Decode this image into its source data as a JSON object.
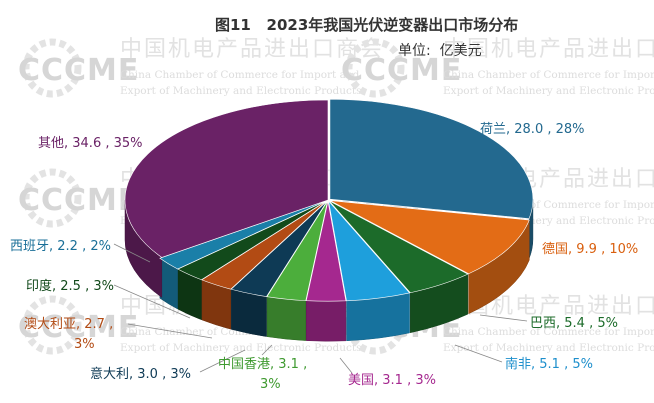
{
  "header": {
    "title": "图11   2023年我国光伏逆变器出口市场分布",
    "unit": "单位:  亿美元"
  },
  "watermark": {
    "logo_text": "CCCME",
    "org_cn": "中国机电产品进出口商会",
    "org_en_line1": "China Chamber of Commerce for Import and",
    "org_en_line2": "Export of Machinery and Electronic Products"
  },
  "chart_data": {
    "type": "pie",
    "style": "3d-exploded",
    "title": "图11   2023年我国光伏逆变器出口市场分布",
    "unit": "单位:  亿美元",
    "slices": [
      {
        "name": "荷兰",
        "value": 28.0,
        "percent": "28%",
        "color": "#23698f",
        "label_lines": [
          "荷兰, 28.0 , 28%"
        ],
        "label_color": "#23698f"
      },
      {
        "name": "德国",
        "value": 9.9,
        "percent": "10%",
        "color": "#e36c16",
        "label_lines": [
          "德国, 9.9 , 10%"
        ],
        "label_color": "#d95f0e"
      },
      {
        "name": "巴西",
        "value": 5.4,
        "percent": "5%",
        "color": "#1c6b2a",
        "label_lines": [
          "巴西, 5.4 , 5%"
        ],
        "label_color": "#1c6b2a"
      },
      {
        "name": "南非",
        "value": 5.1,
        "percent": "5%",
        "color": "#1e9fdc",
        "label_lines": [
          "南非, 5.1 , 5%"
        ],
        "label_color": "#1e8fcc"
      },
      {
        "name": "美国",
        "value": 3.1,
        "percent": "3%",
        "color": "#a5288f",
        "label_lines": [
          "美国, 3.1 , 3%"
        ],
        "label_color": "#a5288f"
      },
      {
        "name": "中国香港",
        "value": 3.1,
        "percent": "3%",
        "color": "#4cae3c",
        "label_lines": [
          "中国香港, 3.1 ,",
          "3%"
        ],
        "label_color": "#3f9a30"
      },
      {
        "name": "意大利",
        "value": 3.0,
        "percent": "3%",
        "color": "#0e3a55",
        "label_lines": [
          "意大利, 3.0 , 3%"
        ],
        "label_color": "#0e3a55"
      },
      {
        "name": "澳大利亚",
        "value": 2.7,
        "percent": "3%",
        "color": "#b24b14",
        "label_lines": [
          "澳大利亚, 2.7 ,",
          "3%"
        ],
        "label_color": "#b24b14"
      },
      {
        "name": "印度",
        "value": 2.5,
        "percent": "3%",
        "color": "#124a1b",
        "label_lines": [
          "印度, 2.5 , 3%"
        ],
        "label_color": "#124a1b"
      },
      {
        "name": "西班牙",
        "value": 2.2,
        "percent": "2%",
        "color": "#1a7fa8",
        "label_lines": [
          "西班牙, 2.2 , 2%"
        ],
        "label_color": "#1a6f98"
      },
      {
        "name": "其他",
        "value": 34.6,
        "percent": "35%",
        "color": "#6a2266",
        "label_lines": [
          "其他, 34.6 , 35%"
        ],
        "label_color": "#6a2266"
      }
    ]
  }
}
